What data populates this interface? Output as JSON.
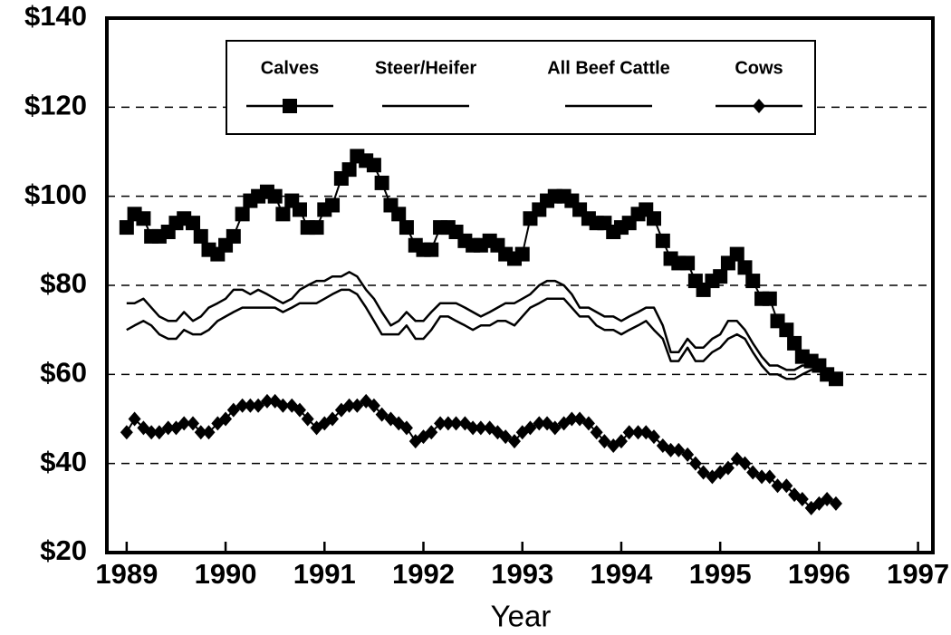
{
  "chart_data": {
    "type": "line",
    "x_label": "Year",
    "xlim": [
      1988.8,
      1997.15
    ],
    "ylim": [
      20,
      140
    ],
    "xticks": [
      1989,
      1990,
      1991,
      1992,
      1993,
      1994,
      1995,
      1996,
      1997
    ],
    "yticks": [
      {
        "value": 20,
        "label": "$20"
      },
      {
        "value": 40,
        "label": "$40"
      },
      {
        "value": 60,
        "label": "$60"
      },
      {
        "value": 80,
        "label": "$80"
      },
      {
        "value": 100,
        "label": "$100"
      },
      {
        "value": 120,
        "label": "$120"
      },
      {
        "value": 140,
        "label": "$140"
      }
    ],
    "grid": true,
    "legend": "top",
    "x": [
      1989,
      1989.08,
      1989.17,
      1989.25,
      1989.33,
      1989.42,
      1989.5,
      1989.58,
      1989.67,
      1989.75,
      1989.83,
      1989.92,
      1990,
      1990.08,
      1990.17,
      1990.25,
      1990.33,
      1990.42,
      1990.5,
      1990.58,
      1990.67,
      1990.75,
      1990.83,
      1990.92,
      1991,
      1991.08,
      1991.17,
      1991.25,
      1991.33,
      1991.42,
      1991.5,
      1991.58,
      1991.67,
      1991.75,
      1991.83,
      1991.92,
      1992,
      1992.08,
      1992.17,
      1992.25,
      1992.33,
      1992.42,
      1992.5,
      1992.58,
      1992.67,
      1992.75,
      1992.83,
      1992.92,
      1993,
      1993.08,
      1993.17,
      1993.25,
      1993.33,
      1993.42,
      1993.5,
      1993.58,
      1993.67,
      1993.75,
      1993.83,
      1993.92,
      1994,
      1994.08,
      1994.17,
      1994.25,
      1994.33,
      1994.42,
      1994.5,
      1994.58,
      1994.67,
      1994.75,
      1994.83,
      1994.92,
      1995,
      1995.08,
      1995.17,
      1995.25,
      1995.33,
      1995.42,
      1995.5,
      1995.58,
      1995.67,
      1995.75,
      1995.83,
      1995.92,
      1996,
      1996.08,
      1996.17
    ],
    "series": [
      {
        "name": "Calves",
        "color": "#000000",
        "marker": "square",
        "values": [
          93,
          96,
          95,
          91,
          91,
          92,
          94,
          95,
          94,
          91,
          88,
          87,
          89,
          91,
          96,
          99,
          100,
          101,
          100,
          96,
          99,
          97,
          93,
          93,
          97,
          98,
          104,
          106,
          109,
          108,
          107,
          103,
          98,
          96,
          93,
          89,
          88,
          88,
          93,
          93,
          92,
          90,
          89,
          89,
          90,
          89,
          87,
          86,
          87,
          95,
          97,
          99,
          100,
          100,
          99,
          97,
          95,
          94,
          94,
          92,
          93,
          94,
          96,
          97,
          95,
          90,
          86,
          85,
          85,
          81,
          79,
          81,
          82,
          85,
          87,
          84,
          81,
          77,
          77,
          72,
          70,
          67,
          64,
          63,
          62,
          60,
          59
        ]
      },
      {
        "name": "Steer/Heifer",
        "color": "#000000",
        "marker": "none",
        "values": [
          76,
          76,
          77,
          75,
          73,
          72,
          72,
          74,
          72,
          73,
          75,
          76,
          77,
          79,
          79,
          78,
          79,
          78,
          77,
          76,
          77,
          79,
          80,
          81,
          81,
          82,
          82,
          83,
          82,
          79,
          77,
          74,
          71,
          72,
          74,
          72,
          72,
          74,
          76,
          76,
          76,
          75,
          74,
          73,
          74,
          75,
          76,
          76,
          77,
          78,
          80,
          81,
          81,
          80,
          78,
          75,
          75,
          74,
          73,
          73,
          72,
          73,
          74,
          75,
          75,
          71,
          65,
          65,
          68,
          66,
          66,
          68,
          69,
          72,
          72,
          70,
          67,
          64,
          62,
          62,
          61,
          61,
          62,
          62,
          62,
          61,
          59
        ]
      },
      {
        "name": "All Beef Cattle",
        "color": "#000000",
        "marker": "none",
        "values": [
          70,
          71,
          72,
          71,
          69,
          68,
          68,
          70,
          69,
          69,
          70,
          72,
          73,
          74,
          75,
          75,
          75,
          75,
          75,
          74,
          75,
          76,
          76,
          76,
          77,
          78,
          79,
          79,
          78,
          75,
          72,
          69,
          69,
          69,
          71,
          68,
          68,
          70,
          73,
          73,
          72,
          71,
          70,
          71,
          71,
          72,
          72,
          71,
          73,
          75,
          76,
          77,
          77,
          77,
          75,
          73,
          73,
          71,
          70,
          70,
          69,
          70,
          71,
          72,
          70,
          68,
          63,
          63,
          66,
          63,
          63,
          65,
          66,
          68,
          69,
          68,
          65,
          62,
          60,
          60,
          59,
          59,
          60,
          61,
          61,
          60,
          59
        ]
      },
      {
        "name": "Cows",
        "color": "#000000",
        "marker": "diamond",
        "values": [
          47,
          50,
          48,
          47,
          47,
          48,
          48,
          49,
          49,
          47,
          47,
          49,
          50,
          52,
          53,
          53,
          53,
          54,
          54,
          53,
          53,
          52,
          50,
          48,
          49,
          50,
          52,
          53,
          53,
          54,
          53,
          51,
          50,
          49,
          48,
          45,
          46,
          47,
          49,
          49,
          49,
          49,
          48,
          48,
          48,
          47,
          46,
          45,
          47,
          48,
          49,
          49,
          48,
          49,
          50,
          50,
          49,
          47,
          45,
          44,
          45,
          47,
          47,
          47,
          46,
          44,
          43,
          43,
          42,
          40,
          38,
          37,
          38,
          39,
          41,
          40,
          38,
          37,
          37,
          35,
          35,
          33,
          32,
          30,
          31,
          32,
          31
        ]
      }
    ]
  }
}
